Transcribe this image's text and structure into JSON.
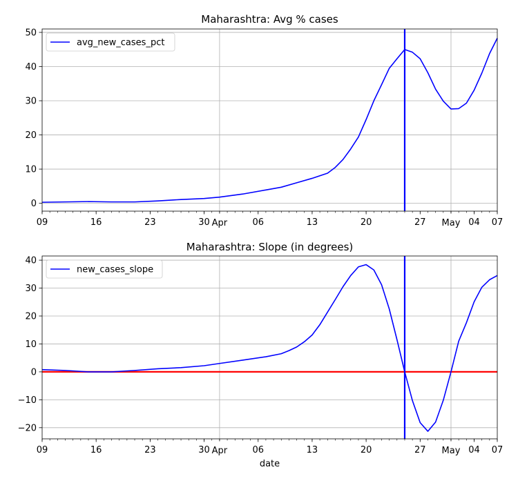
{
  "chart_data": [
    {
      "type": "line",
      "title": "Maharashtra: Avg % cases",
      "xlabel": "",
      "ylabel": "",
      "ylim": [
        -2.3,
        51
      ],
      "yticks": [
        0,
        10,
        20,
        30,
        40,
        50
      ],
      "xlim": [
        "2020-03-09",
        "2020-05-07"
      ],
      "xticks": [
        {
          "date": "2020-03-09",
          "label": "09"
        },
        {
          "date": "2020-03-16",
          "label": "16"
        },
        {
          "date": "2020-03-23",
          "label": "23"
        },
        {
          "date": "2020-03-30",
          "label": "30"
        },
        {
          "date": "2020-04-01",
          "label": "Apr"
        },
        {
          "date": "2020-04-06",
          "label": "06"
        },
        {
          "date": "2020-04-13",
          "label": "13"
        },
        {
          "date": "2020-04-20",
          "label": "20"
        },
        {
          "date": "2020-04-27",
          "label": "27"
        },
        {
          "date": "2020-05-01",
          "label": "May"
        },
        {
          "date": "2020-05-04",
          "label": "04"
        },
        {
          "date": "2020-05-07",
          "label": "07"
        }
      ],
      "grid_dates": [
        "2020-04-01",
        "2020-05-01"
      ],
      "grid": true,
      "legend": {
        "position": "top-left",
        "entries": [
          {
            "name": "avg_new_cases_pct",
            "color": "#0000ff"
          }
        ]
      },
      "vline": {
        "x": "2020-04-25",
        "color": "#0000ff"
      },
      "hline": null,
      "series": [
        {
          "name": "avg_new_cases_pct",
          "color": "#0000ff",
          "x": [
            "2020-03-09",
            "2020-03-12",
            "2020-03-15",
            "2020-03-18",
            "2020-03-21",
            "2020-03-24",
            "2020-03-27",
            "2020-03-30",
            "2020-04-01",
            "2020-04-04",
            "2020-04-07",
            "2020-04-09",
            "2020-04-11",
            "2020-04-13",
            "2020-04-15",
            "2020-04-16",
            "2020-04-17",
            "2020-04-18",
            "2020-04-19",
            "2020-04-20",
            "2020-04-21",
            "2020-04-22",
            "2020-04-23",
            "2020-04-24",
            "2020-04-25",
            "2020-04-26",
            "2020-04-27",
            "2020-04-28",
            "2020-04-29",
            "2020-04-30",
            "2020-05-01",
            "2020-05-02",
            "2020-05-03",
            "2020-05-04",
            "2020-05-05",
            "2020-05-06",
            "2020-05-07"
          ],
          "values": [
            0.3,
            0.4,
            0.5,
            0.4,
            0.4,
            0.7,
            1.1,
            1.4,
            1.8,
            2.7,
            3.9,
            4.7,
            6.0,
            7.3,
            8.8,
            10.5,
            12.8,
            15.9,
            19.4,
            24.5,
            30.0,
            34.7,
            39.5,
            42.3,
            45.0,
            44.2,
            42.3,
            38.2,
            33.4,
            29.9,
            27.6,
            27.7,
            29.3,
            33.1,
            38.1,
            43.8,
            48.3
          ]
        }
      ]
    },
    {
      "type": "line",
      "title": "Maharashtra: Slope (in degrees)",
      "xlabel": "date",
      "ylabel": "",
      "ylim": [
        -24,
        41.5
      ],
      "yticks": [
        -20,
        -10,
        0,
        10,
        20,
        30,
        40
      ],
      "xlim": [
        "2020-03-09",
        "2020-05-07"
      ],
      "xticks": [
        {
          "date": "2020-03-09",
          "label": "09"
        },
        {
          "date": "2020-03-16",
          "label": "16"
        },
        {
          "date": "2020-03-23",
          "label": "23"
        },
        {
          "date": "2020-03-30",
          "label": "30"
        },
        {
          "date": "2020-04-01",
          "label": "Apr"
        },
        {
          "date": "2020-04-06",
          "label": "06"
        },
        {
          "date": "2020-04-13",
          "label": "13"
        },
        {
          "date": "2020-04-20",
          "label": "20"
        },
        {
          "date": "2020-04-27",
          "label": "27"
        },
        {
          "date": "2020-05-01",
          "label": "May"
        },
        {
          "date": "2020-05-04",
          "label": "04"
        },
        {
          "date": "2020-05-07",
          "label": "07"
        }
      ],
      "grid_dates": [
        "2020-04-01",
        "2020-05-01"
      ],
      "grid": true,
      "legend": {
        "position": "top-left",
        "entries": [
          {
            "name": "new_cases_slope",
            "color": "#0000ff"
          }
        ]
      },
      "vline": {
        "x": "2020-04-25",
        "color": "#0000ff"
      },
      "hline": {
        "y": 0,
        "color": "#ff0000"
      },
      "series": [
        {
          "name": "new_cases_slope",
          "color": "#0000ff",
          "x": [
            "2020-03-09",
            "2020-03-12",
            "2020-03-15",
            "2020-03-18",
            "2020-03-21",
            "2020-03-24",
            "2020-03-27",
            "2020-03-30",
            "2020-04-01",
            "2020-04-04",
            "2020-04-07",
            "2020-04-09",
            "2020-04-10",
            "2020-04-11",
            "2020-04-12",
            "2020-04-13",
            "2020-04-14",
            "2020-04-15",
            "2020-04-16",
            "2020-04-17",
            "2020-04-18",
            "2020-04-19",
            "2020-04-20",
            "2020-04-21",
            "2020-04-22",
            "2020-04-23",
            "2020-04-24",
            "2020-04-25",
            "2020-04-26",
            "2020-04-27",
            "2020-04-28",
            "2020-04-29",
            "2020-04-30",
            "2020-05-01",
            "2020-05-02",
            "2020-05-03",
            "2020-05-04",
            "2020-05-05",
            "2020-05-06",
            "2020-05-07"
          ],
          "values": [
            0.8,
            0.5,
            0.0,
            0.0,
            0.5,
            1.1,
            1.5,
            2.2,
            3.0,
            4.2,
            5.4,
            6.5,
            7.6,
            8.9,
            10.8,
            13.2,
            16.9,
            21.4,
            25.9,
            30.5,
            34.5,
            37.6,
            38.4,
            36.5,
            31.2,
            22.5,
            11.5,
            0.0,
            -10.3,
            -18.2,
            -21.3,
            -18.0,
            -10.2,
            0.0,
            11.0,
            17.6,
            25.1,
            30.3,
            33.0,
            34.5
          ]
        }
      ]
    }
  ]
}
